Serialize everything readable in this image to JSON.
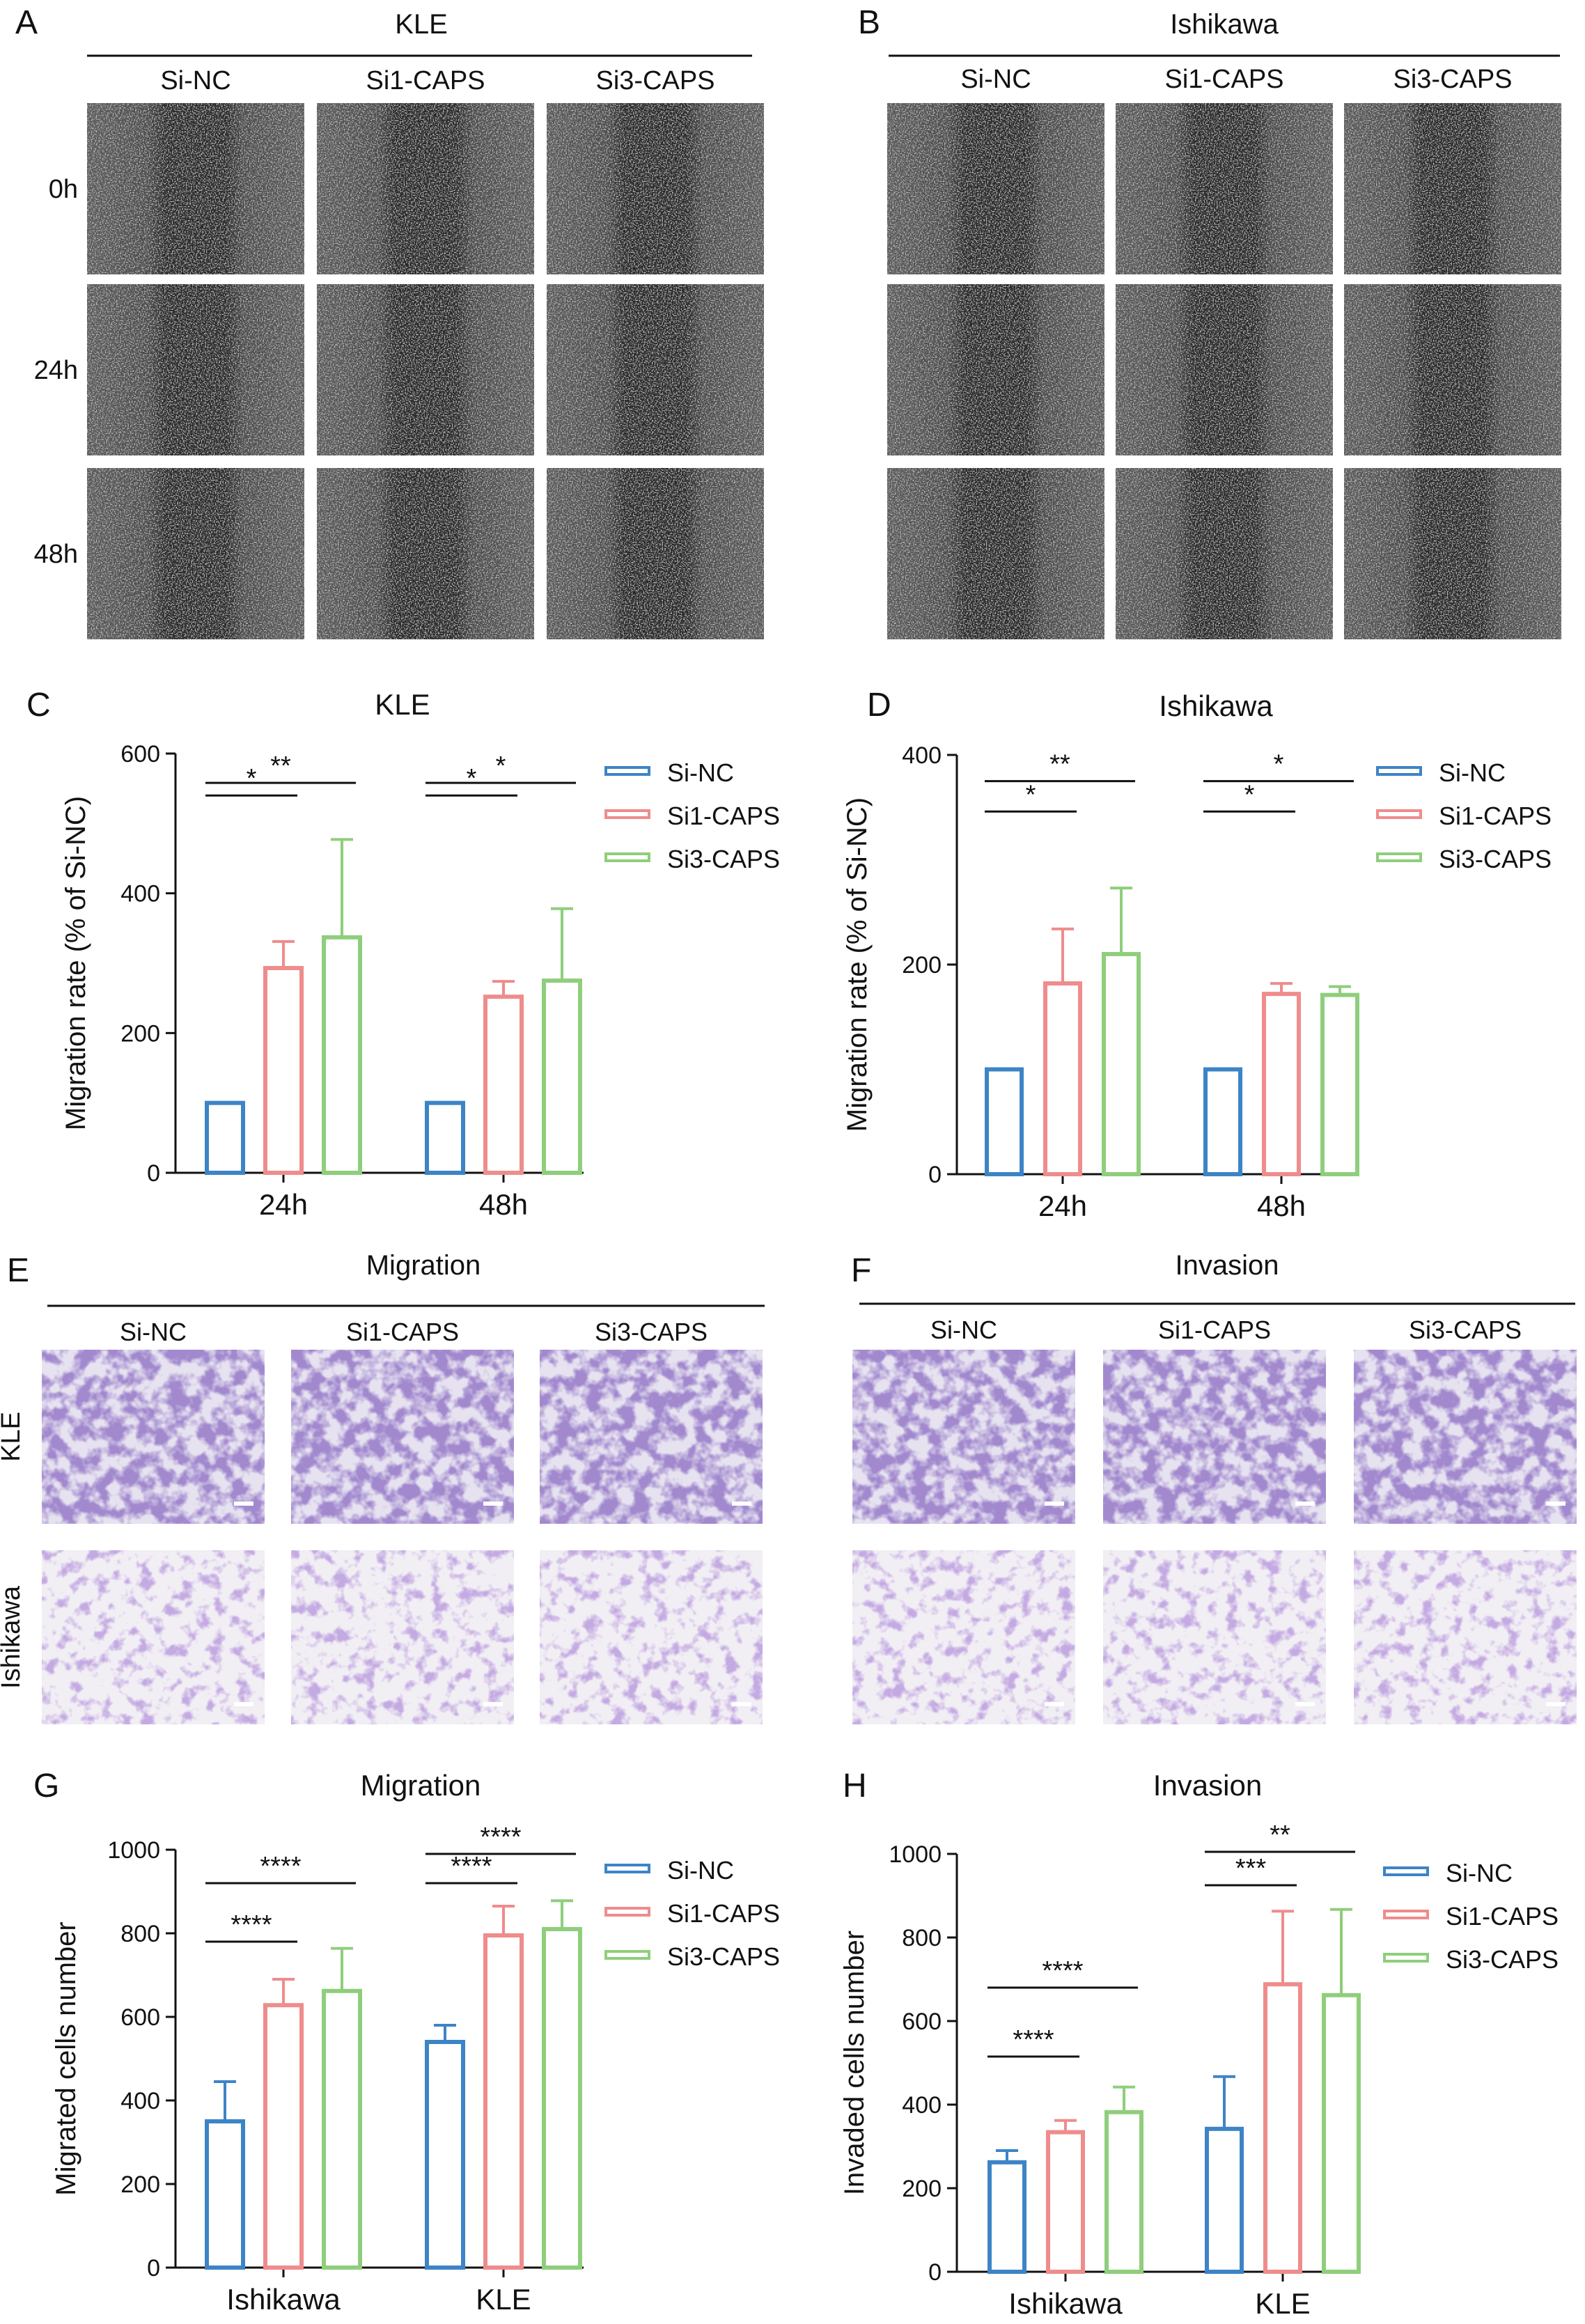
{
  "colors": {
    "si_nc": "#3d84c6",
    "si1_caps": "#ef8c8c",
    "si3_caps": "#8fce7c",
    "axis": "#111111"
  },
  "panel_letters": [
    "A",
    "B",
    "C",
    "D",
    "E",
    "F",
    "G",
    "H"
  ],
  "panel_A": {
    "title": "KLE",
    "columns": [
      "Si-NC",
      "Si1-CAPS",
      "Si3-CAPS"
    ],
    "rows": [
      "0h",
      "24h",
      "48h"
    ]
  },
  "panel_B": {
    "title": "Ishikawa",
    "columns": [
      "Si-NC",
      "Si1-CAPS",
      "Si3-CAPS"
    ]
  },
  "panel_E": {
    "title": "Migration",
    "columns": [
      "Si-NC",
      "Si1-CAPS",
      "Si3-CAPS"
    ],
    "rows": [
      "KLE",
      "Ishikawa"
    ]
  },
  "panel_F": {
    "title": "Invasion",
    "columns": [
      "Si-NC",
      "Si1-CAPS",
      "Si3-CAPS"
    ]
  },
  "chart_data": [
    {
      "panel": "C",
      "type": "bar",
      "title": "KLE",
      "ylabel": "Migration rate (% of Si-NC)",
      "xlabel": "",
      "ylim": [
        0,
        600
      ],
      "yticks": [
        0,
        200,
        400,
        600
      ],
      "categories": [
        "24h",
        "48h"
      ],
      "series": [
        {
          "name": "Si-NC",
          "values": [
            100,
            100
          ],
          "errors": [
            0,
            0
          ]
        },
        {
          "name": "Si1-CAPS",
          "values": [
            293,
            252
          ],
          "errors": [
            38,
            22
          ]
        },
        {
          "name": "Si3-CAPS",
          "values": [
            337,
            275
          ],
          "errors": [
            140,
            103
          ]
        }
      ],
      "significance": [
        {
          "category": 0,
          "from": 0,
          "to": 1,
          "label": "*",
          "y": 540
        },
        {
          "category": 0,
          "from": 0,
          "to": 2,
          "label": "**",
          "y": 558
        },
        {
          "category": 1,
          "from": 0,
          "to": 1,
          "label": "*",
          "y": 540
        },
        {
          "category": 1,
          "from": 0,
          "to": 2,
          "label": "*",
          "y": 558
        }
      ],
      "legend": "top-right"
    },
    {
      "panel": "D",
      "type": "bar",
      "title": "Ishikawa",
      "ylabel": "Migration rate (% of Si-NC)",
      "xlabel": "",
      "ylim": [
        0,
        400
      ],
      "yticks": [
        0,
        200,
        400
      ],
      "categories": [
        "24h",
        "48h"
      ],
      "series": [
        {
          "name": "Si-NC",
          "values": [
            100,
            100
          ],
          "errors": [
            0,
            0
          ]
        },
        {
          "name": "Si1-CAPS",
          "values": [
            182,
            172
          ],
          "errors": [
            52,
            10
          ]
        },
        {
          "name": "Si3-CAPS",
          "values": [
            210,
            171
          ],
          "errors": [
            63,
            8
          ]
        }
      ],
      "significance": [
        {
          "category": 0,
          "from": 0,
          "to": 1,
          "label": "*",
          "y": 346
        },
        {
          "category": 0,
          "from": 0,
          "to": 2,
          "label": "**",
          "y": 375
        },
        {
          "category": 1,
          "from": 0,
          "to": 1,
          "label": "*",
          "y": 346
        },
        {
          "category": 1,
          "from": 0,
          "to": 2,
          "label": "*",
          "y": 375
        }
      ],
      "legend": "top-right"
    },
    {
      "panel": "G",
      "type": "bar",
      "title": "Migration",
      "ylabel": "Migrated cells number",
      "xlabel": "",
      "ylim": [
        0,
        1000
      ],
      "yticks": [
        0,
        200,
        400,
        600,
        800,
        1000
      ],
      "categories": [
        "Ishikawa",
        "KLE"
      ],
      "series": [
        {
          "name": "Si-NC",
          "values": [
            350,
            540
          ],
          "errors": [
            95,
            40
          ]
        },
        {
          "name": "Si1-CAPS",
          "values": [
            628,
            795
          ],
          "errors": [
            62,
            70
          ]
        },
        {
          "name": "Si3-CAPS",
          "values": [
            662,
            810
          ],
          "errors": [
            102,
            68
          ]
        }
      ],
      "significance": [
        {
          "category": 0,
          "from": 0,
          "to": 1,
          "label": "****",
          "y": 780
        },
        {
          "category": 0,
          "from": 0,
          "to": 2,
          "label": "****",
          "y": 920
        },
        {
          "category": 1,
          "from": 0,
          "to": 1,
          "label": "****",
          "y": 920
        },
        {
          "category": 1,
          "from": 0,
          "to": 2,
          "label": "****",
          "y": 990
        }
      ],
      "legend": "top-right"
    },
    {
      "panel": "H",
      "type": "bar",
      "title": "Invasion",
      "ylabel": "Invaded cells number",
      "xlabel": "",
      "ylim": [
        0,
        1000
      ],
      "yticks": [
        0,
        200,
        400,
        600,
        800,
        1000
      ],
      "categories": [
        "Ishikawa",
        "KLE"
      ],
      "series": [
        {
          "name": "Si-NC",
          "values": [
            262,
            342
          ],
          "errors": [
            28,
            125
          ]
        },
        {
          "name": "Si1-CAPS",
          "values": [
            334,
            688
          ],
          "errors": [
            28,
            175
          ]
        },
        {
          "name": "Si3-CAPS",
          "values": [
            382,
            662
          ],
          "errors": [
            60,
            205
          ]
        }
      ],
      "significance": [
        {
          "category": 0,
          "from": 0,
          "to": 1,
          "label": "****",
          "y": 515
        },
        {
          "category": 0,
          "from": 0,
          "to": 2,
          "label": "****",
          "y": 680
        },
        {
          "category": 1,
          "from": 0,
          "to": 1,
          "label": "***",
          "y": 925
        },
        {
          "category": 1,
          "from": 0,
          "to": 2,
          "label": "**",
          "y": 1005
        }
      ],
      "legend": "top-right"
    }
  ]
}
